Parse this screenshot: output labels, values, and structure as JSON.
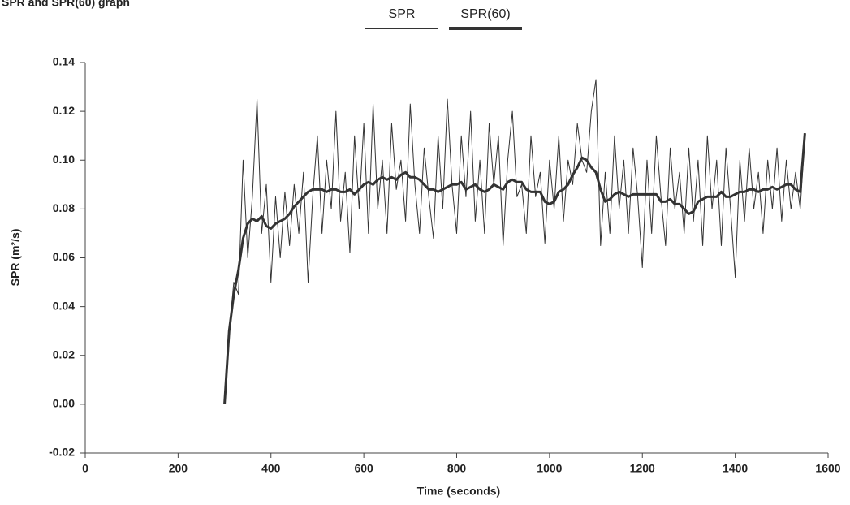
{
  "chart_data": {
    "type": "line",
    "title": "SPR and SPR(60) graph",
    "x_label": "Time (seconds)",
    "y_label": "SPR (m²/s)",
    "legend": "top",
    "grid": false,
    "xlim": [
      0,
      1600
    ],
    "xticks": [
      0,
      200,
      400,
      600,
      800,
      1000,
      1200,
      1400,
      1600
    ],
    "ylim": [
      -0.02,
      0.14
    ],
    "yticks": [
      0.14,
      0.12,
      {
        "value": 0.1,
        "label": "0.10"
      },
      0.08,
      0.06,
      0.04,
      0.02,
      {
        "value": 0,
        "label": "0.00"
      },
      -0.02
    ],
    "x": [
      300,
      310,
      320,
      330,
      340,
      350,
      360,
      370,
      380,
      390,
      400,
      410,
      420,
      430,
      440,
      450,
      460,
      470,
      480,
      490,
      500,
      510,
      520,
      530,
      540,
      550,
      560,
      570,
      580,
      590,
      600,
      610,
      620,
      630,
      640,
      650,
      660,
      670,
      680,
      690,
      700,
      710,
      720,
      730,
      740,
      750,
      760,
      770,
      780,
      790,
      800,
      810,
      820,
      830,
      840,
      850,
      860,
      870,
      880,
      890,
      900,
      910,
      920,
      930,
      940,
      950,
      960,
      970,
      980,
      990,
      1000,
      1010,
      1020,
      1030,
      1040,
      1050,
      1060,
      1070,
      1080,
      1090,
      1100,
      1110,
      1120,
      1130,
      1140,
      1150,
      1160,
      1170,
      1180,
      1190,
      1200,
      1210,
      1220,
      1230,
      1240,
      1250,
      1260,
      1270,
      1280,
      1290,
      1300,
      1310,
      1320,
      1330,
      1340,
      1350,
      1360,
      1370,
      1380,
      1390,
      1400,
      1410,
      1420,
      1430,
      1440,
      1450,
      1460,
      1470,
      1480,
      1490,
      1500,
      1510,
      1520,
      1530,
      1540,
      1550
    ],
    "series": [
      {
        "name": "SPR",
        "color": "#333333",
        "line_width": 1,
        "values": [
          0,
          0.03,
          0.05,
          0.045,
          0.1,
          0.06,
          0.085,
          0.125,
          0.07,
          0.09,
          0.05,
          0.085,
          0.06,
          0.087,
          0.065,
          0.09,
          0.07,
          0.095,
          0.05,
          0.085,
          0.11,
          0.07,
          0.1,
          0.08,
          0.12,
          0.075,
          0.095,
          0.062,
          0.11,
          0.08,
          0.115,
          0.07,
          0.123,
          0.08,
          0.1,
          0.07,
          0.115,
          0.088,
          0.1,
          0.075,
          0.123,
          0.09,
          0.07,
          0.105,
          0.085,
          0.068,
          0.11,
          0.08,
          0.125,
          0.09,
          0.07,
          0.11,
          0.085,
          0.12,
          0.075,
          0.1,
          0.07,
          0.115,
          0.09,
          0.11,
          0.065,
          0.1,
          0.12,
          0.085,
          0.09,
          0.07,
          0.11,
          0.085,
          0.095,
          0.066,
          0.1,
          0.08,
          0.11,
          0.075,
          0.1,
          0.09,
          0.115,
          0.1,
          0.095,
          0.12,
          0.133,
          0.065,
          0.095,
          0.07,
          0.11,
          0.08,
          0.1,
          0.07,
          0.105,
          0.085,
          0.056,
          0.1,
          0.07,
          0.11,
          0.085,
          0.065,
          0.105,
          0.08,
          0.095,
          0.07,
          0.105,
          0.075,
          0.1,
          0.065,
          0.11,
          0.08,
          0.1,
          0.065,
          0.105,
          0.08,
          0.052,
          0.1,
          0.075,
          0.105,
          0.08,
          0.095,
          0.07,
          0.1,
          0.08,
          0.105,
          0.075,
          0.1,
          0.08,
          0.095,
          0.08,
          0.11
        ]
      },
      {
        "name": "SPR(60)",
        "color": "#333333",
        "line_width": 3,
        "values": [
          0,
          0.03,
          0.045,
          0.055,
          0.068,
          0.074,
          0.076,
          0.075,
          0.077,
          0.073,
          0.072,
          0.074,
          0.075,
          0.076,
          0.078,
          0.081,
          0.083,
          0.085,
          0.087,
          0.088,
          0.088,
          0.088,
          0.087,
          0.088,
          0.088,
          0.087,
          0.087,
          0.088,
          0.086,
          0.088,
          0.09,
          0.091,
          0.09,
          0.092,
          0.093,
          0.092,
          0.093,
          0.092,
          0.094,
          0.095,
          0.093,
          0.093,
          0.092,
          0.09,
          0.088,
          0.088,
          0.087,
          0.088,
          0.089,
          0.09,
          0.09,
          0.091,
          0.088,
          0.089,
          0.09,
          0.088,
          0.087,
          0.088,
          0.09,
          0.089,
          0.088,
          0.091,
          0.092,
          0.091,
          0.091,
          0.088,
          0.087,
          0.087,
          0.087,
          0.083,
          0.082,
          0.083,
          0.087,
          0.088,
          0.09,
          0.094,
          0.097,
          0.101,
          0.1,
          0.097,
          0.095,
          0.088,
          0.083,
          0.084,
          0.086,
          0.087,
          0.086,
          0.085,
          0.086,
          0.086,
          0.086,
          0.086,
          0.086,
          0.086,
          0.083,
          0.083,
          0.084,
          0.082,
          0.082,
          0.08,
          0.078,
          0.079,
          0.083,
          0.084,
          0.085,
          0.085,
          0.085,
          0.087,
          0.085,
          0.085,
          0.086,
          0.087,
          0.087,
          0.088,
          0.088,
          0.087,
          0.088,
          0.088,
          0.089,
          0.088,
          0.089,
          0.09,
          0.09,
          0.088,
          0.087,
          0.111
        ]
      }
    ]
  }
}
